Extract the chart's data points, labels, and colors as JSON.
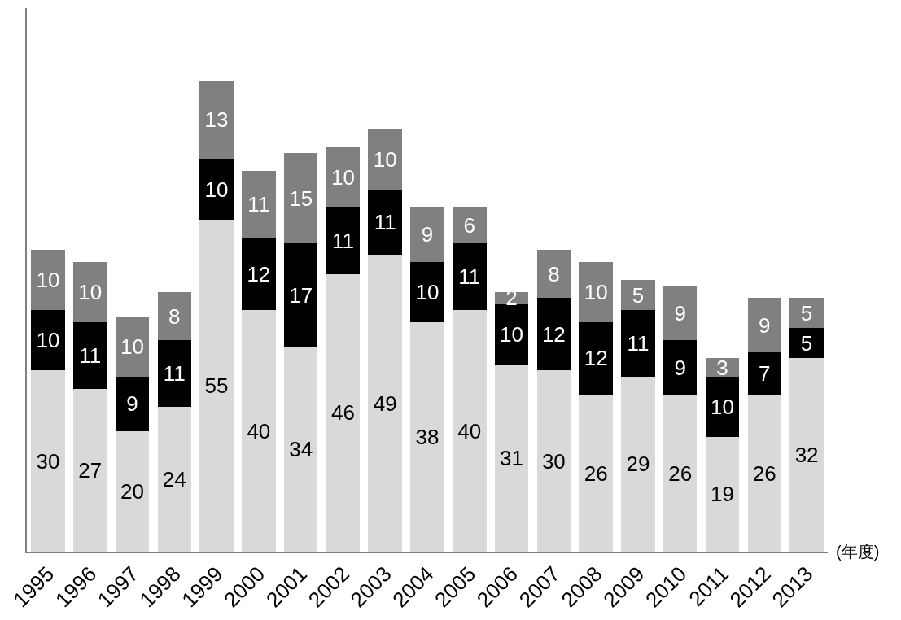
{
  "chart_data": {
    "type": "bar",
    "stacked": true,
    "data_labels": true,
    "xlabel": "(年度)",
    "ylim": [
      0,
      90
    ],
    "categories": [
      "1995",
      "1996",
      "1997",
      "1998",
      "1999",
      "2000",
      "2001",
      "2002",
      "2003",
      "2004",
      "2005",
      "2006",
      "2007",
      "2008",
      "2009",
      "2010",
      "2011",
      "2012",
      "2013"
    ],
    "series": [
      {
        "color": "#d9d9d9",
        "values": [
          30,
          27,
          20,
          24,
          55,
          40,
          34,
          46,
          49,
          38,
          40,
          31,
          30,
          26,
          29,
          26,
          19,
          26,
          32
        ]
      },
      {
        "color": "#000000",
        "values": [
          10,
          11,
          9,
          11,
          10,
          12,
          17,
          11,
          11,
          10,
          11,
          10,
          12,
          12,
          11,
          9,
          10,
          7,
          5
        ]
      },
      {
        "color": "#808080",
        "values": [
          10,
          10,
          10,
          8,
          13,
          11,
          15,
          10,
          10,
          9,
          6,
          2,
          8,
          10,
          5,
          9,
          3,
          9,
          5
        ]
      }
    ]
  }
}
